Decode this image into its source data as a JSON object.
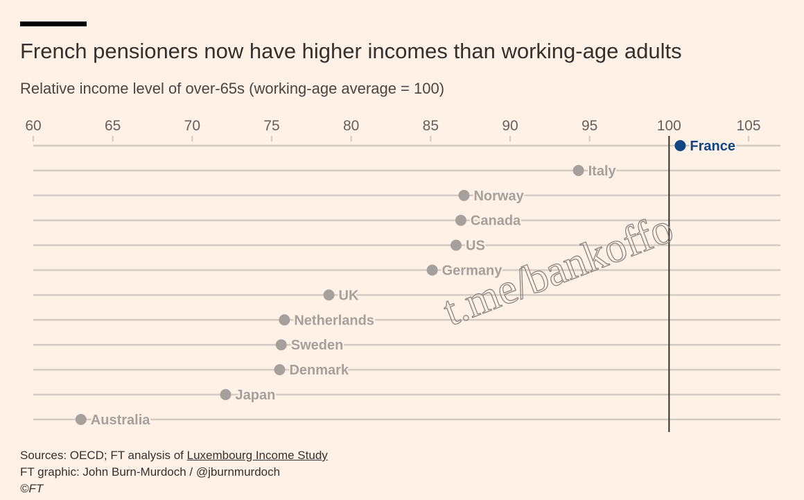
{
  "title": "French pensioners now have higher incomes than working-age adults",
  "subtitle": "Relative income level of over-65s (working-age average = 100)",
  "colors": {
    "background": "#fff1e5",
    "highlight": "#0f4584",
    "dot": "#a5a09b",
    "label": "#a5a09b",
    "gridline": "#d4ccc2",
    "reference_line": "#33302e",
    "tick_text": "#66605c"
  },
  "chart_data": {
    "type": "scatter",
    "title": "French pensioners now have higher incomes than working-age adults",
    "subtitle": "Relative income level of over-65s (working-age average = 100)",
    "xlim": [
      60,
      107
    ],
    "x_ticks": [
      60,
      65,
      70,
      75,
      80,
      85,
      90,
      95,
      100,
      105
    ],
    "reference_x": 100,
    "highlight": "France",
    "grid": true,
    "points": [
      {
        "label": "France",
        "value": 100.7
      },
      {
        "label": "Italy",
        "value": 94.3
      },
      {
        "label": "Norway",
        "value": 87.1
      },
      {
        "label": "Canada",
        "value": 86.9
      },
      {
        "label": "US",
        "value": 86.6
      },
      {
        "label": "Germany",
        "value": 85.1
      },
      {
        "label": "UK",
        "value": 78.6
      },
      {
        "label": "Netherlands",
        "value": 75.8
      },
      {
        "label": "Sweden",
        "value": 75.6
      },
      {
        "label": "Denmark",
        "value": 75.5
      },
      {
        "label": "Japan",
        "value": 72.1
      },
      {
        "label": "Australia",
        "value": 63.0
      }
    ]
  },
  "watermark": "t.me/bankoffo",
  "footer": {
    "sources_prefix": "Sources: OECD; FT analysis of ",
    "sources_link": "Luxembourg Income Study",
    "graphic_credit": "FT graphic: John Burn-Murdoch / @jburnmurdoch",
    "copyright": "©FT"
  }
}
